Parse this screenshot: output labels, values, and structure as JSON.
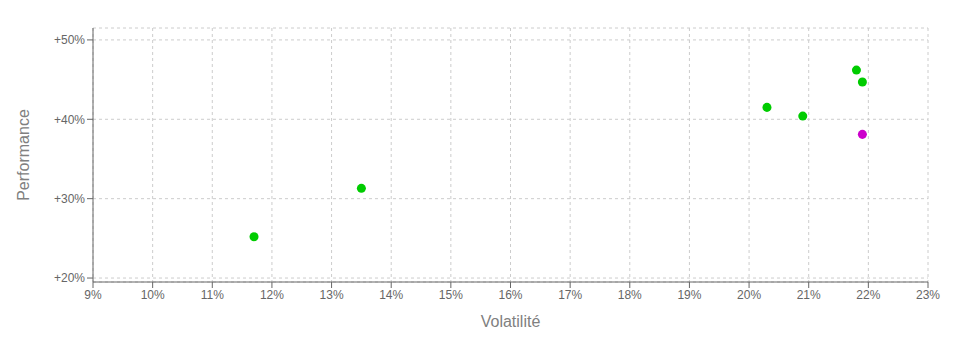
{
  "chart_data": {
    "type": "scatter",
    "xlabel": "Volatilité",
    "ylabel": "Performance",
    "xlim": [
      0.09,
      0.23
    ],
    "ylim": [
      0.195,
      0.515
    ],
    "xticks": [
      {
        "value": 0.09,
        "label": "9%"
      },
      {
        "value": 0.1,
        "label": "10%"
      },
      {
        "value": 0.11,
        "label": "11%"
      },
      {
        "value": 0.12,
        "label": "12%"
      },
      {
        "value": 0.13,
        "label": "13%"
      },
      {
        "value": 0.14,
        "label": "14%"
      },
      {
        "value": 0.15,
        "label": "15%"
      },
      {
        "value": 0.16,
        "label": "16%"
      },
      {
        "value": 0.17,
        "label": "17%"
      },
      {
        "value": 0.18,
        "label": "18%"
      },
      {
        "value": 0.19,
        "label": "19%"
      },
      {
        "value": 0.2,
        "label": "20%"
      },
      {
        "value": 0.21,
        "label": "21%"
      },
      {
        "value": 0.22,
        "label": "22%"
      },
      {
        "value": 0.23,
        "label": "23%"
      }
    ],
    "yticks": [
      {
        "value": 0.2,
        "label": "+20%"
      },
      {
        "value": 0.3,
        "label": "+30%"
      },
      {
        "value": 0.4,
        "label": "+40%"
      },
      {
        "value": 0.5,
        "label": "+50%"
      }
    ],
    "grid": true,
    "series": [
      {
        "color": "#00cc00",
        "x": [
          0.117,
          0.135,
          0.203,
          0.209,
          0.218,
          0.219
        ],
        "values": [
          0.252,
          0.313,
          0.415,
          0.404,
          0.462,
          0.447
        ]
      },
      {
        "color": "#cc00cc",
        "x": [
          0.219
        ],
        "values": [
          0.381
        ]
      }
    ]
  }
}
